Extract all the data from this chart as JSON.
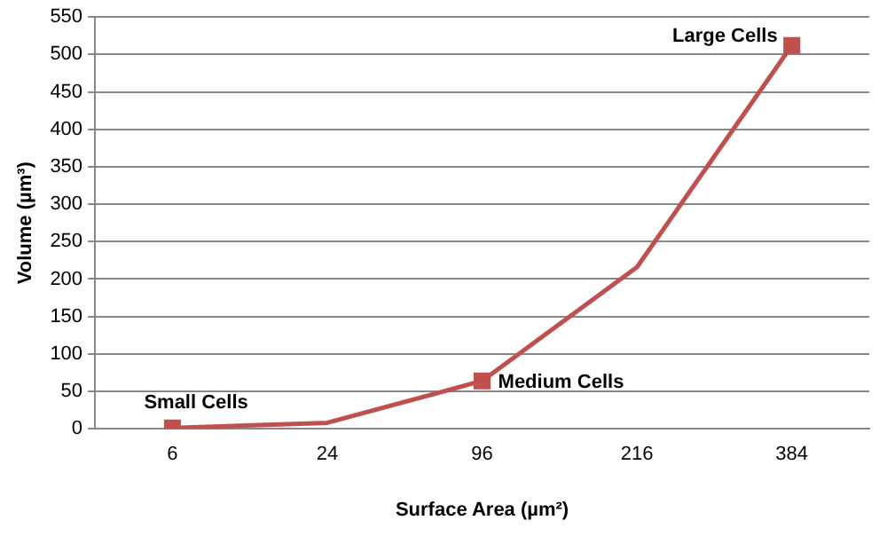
{
  "chart_data": {
    "type": "line",
    "xlabel": "Surface Area (µm²)",
    "ylabel": "Volume (µm³)",
    "categories": [
      "6",
      "24",
      "96",
      "216",
      "384"
    ],
    "series": [
      {
        "type": "line",
        "color": "#c0504d",
        "values": [
          1,
          8,
          64,
          216,
          512
        ],
        "marker": "none"
      },
      {
        "type": "scatter",
        "color": "#c0504d",
        "x": [
          "6",
          "96",
          "384"
        ],
        "values": [
          1,
          64,
          512
        ],
        "marker": "square"
      }
    ],
    "ylim": [
      0,
      550
    ],
    "yticks": [
      0,
      50,
      100,
      150,
      200,
      250,
      300,
      350,
      400,
      450,
      500,
      550
    ],
    "grid": "y",
    "legend": false,
    "annotations": [
      {
        "text": "Small Cells",
        "x": "6",
        "y": 1
      },
      {
        "text": "Medium Cells",
        "x": "96",
        "y": 64
      },
      {
        "text": "Large Cells",
        "x": "384",
        "y": 512
      }
    ]
  }
}
